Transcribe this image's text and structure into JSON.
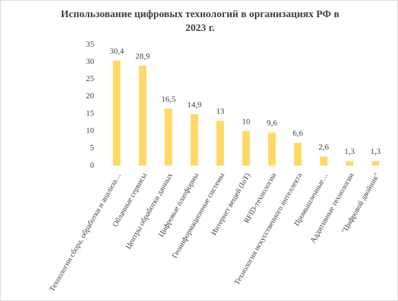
{
  "chart_data": {
    "type": "bar",
    "title": "Использование цифровых технологий в организациях РФ в 2023 г.",
    "categories": [
      "Технологии сбора, обработки и анализа…",
      "Облачные сервисы",
      "Центры обработки данных",
      "Цифровые платформы",
      "Геоинформационные системы",
      "Интернет вещей (IoT)",
      "RFID-технологии",
      "Технологии искусственного интеллекта",
      "Промышленные…",
      "Аддитивные технологии",
      "\"Цифровой двойник\""
    ],
    "values": [
      30.4,
      28.9,
      16.5,
      14.9,
      13,
      10,
      9.6,
      6.6,
      2.6,
      1.3,
      1.3
    ],
    "value_labels": [
      "30,4",
      "28,9",
      "16,5",
      "14,9",
      "13",
      "10",
      "9,6",
      "6,6",
      "2,6",
      "1,3",
      "1,3"
    ],
    "color": "#ffd966",
    "ylim": [
      0,
      35
    ],
    "yticks": [
      0,
      5,
      10,
      15,
      20,
      25,
      30,
      35
    ],
    "grid": false
  }
}
